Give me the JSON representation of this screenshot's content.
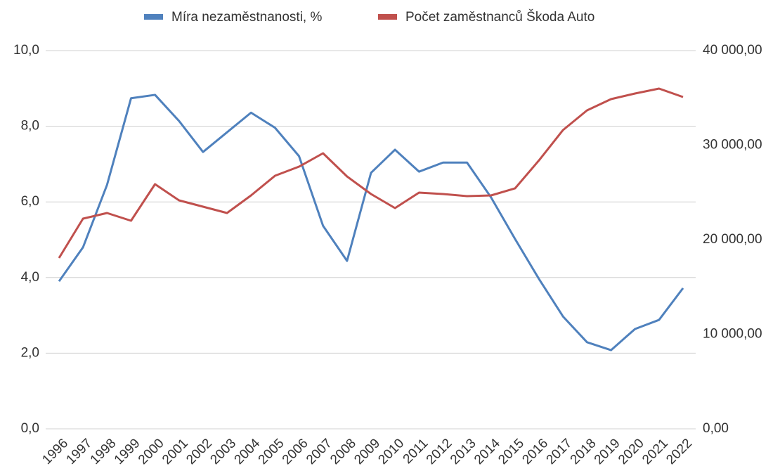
{
  "chart_data": {
    "type": "line",
    "categories": [
      "1996",
      "1997",
      "1998",
      "1999",
      "2000",
      "2001",
      "2002",
      "2003",
      "2004",
      "2005",
      "2006",
      "2007",
      "2008",
      "2009",
      "2010",
      "2011",
      "2012",
      "2013",
      "2014",
      "2015",
      "2016",
      "2017",
      "2018",
      "2019",
      "2020",
      "2021",
      "2022"
    ],
    "series": [
      {
        "name": "Míra nezaměstnanosti, %",
        "color": "#4f81bd",
        "values": [
          3.9,
          4.8,
          6.45,
          8.74,
          8.83,
          8.14,
          7.32,
          7.84,
          8.36,
          7.96,
          7.21,
          5.37,
          4.44,
          6.77,
          7.38,
          6.8,
          7.04,
          7.04,
          6.12,
          5.02,
          3.96,
          2.97,
          2.29,
          2.08,
          2.64,
          2.88,
          3.72
        ]
      },
      {
        "name": "Počet zaměstnanců Škoda Auto",
        "color": "#c0504d",
        "axis": "y2",
        "values": [
          18067,
          22230,
          22825,
          22007,
          25874,
          24164,
          23494,
          22825,
          24684,
          26766,
          27732,
          29145,
          26691,
          24833,
          23346,
          24981,
          24833,
          24610,
          24684,
          25428,
          28401,
          31599,
          33680,
          34870,
          35465,
          35985,
          35093
        ]
      }
    ],
    "ylim": [
      0,
      10
    ],
    "yticks": [
      {
        "value": 0,
        "label": "0,0"
      },
      {
        "value": 2,
        "label": "2,0"
      },
      {
        "value": 4,
        "label": "4,0"
      },
      {
        "value": 6,
        "label": "6,0"
      },
      {
        "value": 8,
        "label": "8,0"
      },
      {
        "value": 10,
        "label": "10,0"
      }
    ],
    "y2lim": [
      0,
      40000
    ],
    "y2ticks": [
      {
        "value": 0,
        "label": "0,00"
      },
      {
        "value": 10000,
        "label": "10 000,00"
      },
      {
        "value": 20000,
        "label": "20 000,00"
      },
      {
        "value": 30000,
        "label": "30 000,00"
      },
      {
        "value": 40000,
        "label": "40 000,00"
      }
    ],
    "grid": true,
    "legend": "top"
  }
}
